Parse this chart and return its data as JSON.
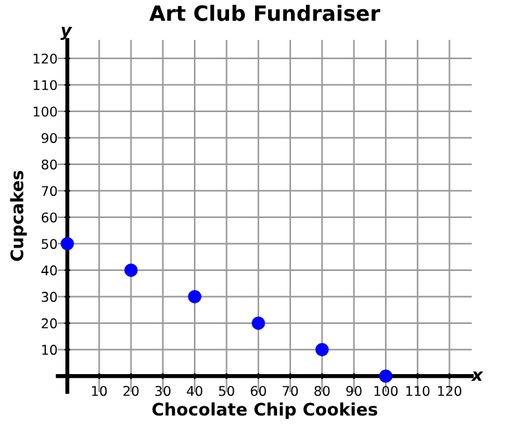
{
  "chart_data": {
    "type": "scatter",
    "title": "Art Club Fundraiser",
    "xlabel": "Chocolate Chip Cookies",
    "ylabel": "Cupcakes",
    "annotations": [
      "x",
      "y"
    ],
    "x": [
      0,
      20,
      40,
      60,
      80,
      100
    ],
    "series": [
      {
        "color": "#0000ff",
        "values": [
          50,
          40,
          30,
          20,
          10,
          0
        ]
      }
    ],
    "xlim": [
      -3,
      127
    ],
    "ylim": [
      -6,
      127
    ],
    "xticks": [
      10,
      20,
      30,
      40,
      50,
      60,
      70,
      80,
      90,
      100,
      110,
      120
    ],
    "yticks": [
      10,
      20,
      30,
      40,
      50,
      60,
      70,
      80,
      90,
      100,
      110,
      120
    ],
    "grid": true,
    "marker": "circle"
  }
}
